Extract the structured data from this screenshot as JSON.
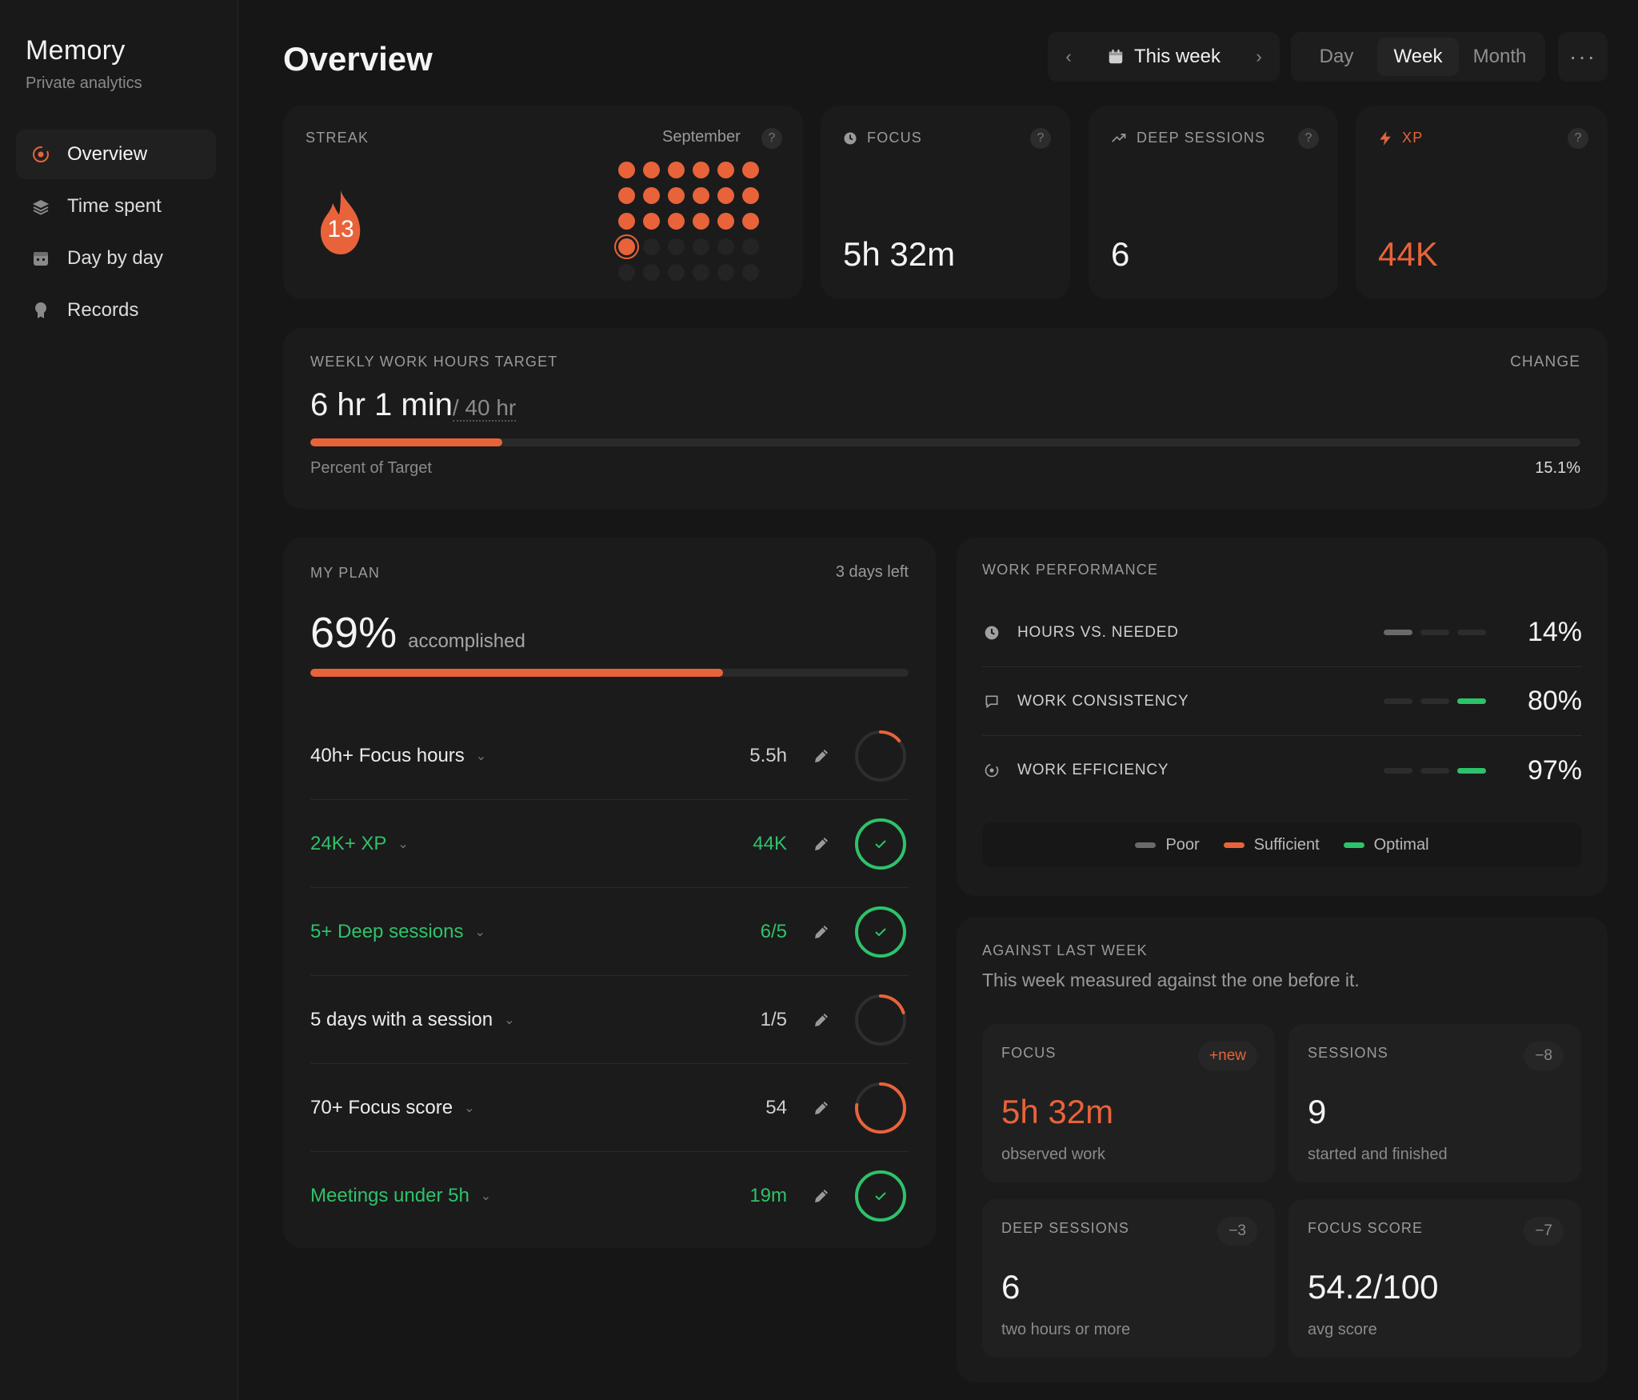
{
  "app": {
    "title": "Memory",
    "subtitle": "Private analytics"
  },
  "sidebar": {
    "items": [
      {
        "label": "Overview",
        "icon": "target-icon",
        "active": true
      },
      {
        "label": "Time spent",
        "icon": "layers-icon"
      },
      {
        "label": "Day by day",
        "icon": "calendar-icon"
      },
      {
        "label": "Records",
        "icon": "medal-icon"
      }
    ]
  },
  "header": {
    "title": "Overview",
    "period_label": "This week",
    "prev_icon": "chevron-left-icon",
    "next_icon": "chevron-right-icon",
    "range_options": [
      "Day",
      "Week",
      "Month"
    ],
    "range_selected": "Week",
    "more_icon": "more-horizontal-icon"
  },
  "streak": {
    "label": "STREAK",
    "month": "September",
    "days": 13,
    "calendar_total_days": 30,
    "calendar_active_days": 19,
    "calendar_today_index": 18
  },
  "stats": [
    {
      "label": "FOCUS",
      "icon": "clock-icon",
      "value": "5h 32m",
      "accent": false
    },
    {
      "label": "DEEP SESSIONS",
      "icon": "trend-up-icon",
      "value": "6",
      "accent": false
    },
    {
      "label": "XP",
      "icon": "bolt-icon",
      "value": "44K",
      "accent": true
    }
  ],
  "target": {
    "label": "WEEKLY WORK HOURS TARGET",
    "change_label": "CHANGE",
    "value": "6 hr 1 min",
    "of": "/ 40 hr",
    "footer": "Percent of Target",
    "percent_text": "15.1%",
    "progress": 0.151
  },
  "plan": {
    "label": "MY PLAN",
    "days_left": "3 days left",
    "percent": "69%",
    "percent_note": "accomplished",
    "progress": 0.69,
    "goals": [
      {
        "name": "40h+ Focus hours",
        "value": "5.5h",
        "progress": 0.14,
        "done": false
      },
      {
        "name": "24K+ XP",
        "value": "44K",
        "progress": 1,
        "done": true
      },
      {
        "name": "5+ Deep sessions",
        "value": "6/5",
        "progress": 1,
        "done": true
      },
      {
        "name": "5 days with a session",
        "value": "1/5",
        "progress": 0.2,
        "done": false
      },
      {
        "name": "70+ Focus score",
        "value": "54",
        "progress": 0.77,
        "done": false
      },
      {
        "name": "Meetings under 5h",
        "value": "19m",
        "progress": 1,
        "done": true
      }
    ]
  },
  "performance": {
    "label": "WORK PERFORMANCE",
    "rows": [
      {
        "name": "HOURS VS. NEEDED",
        "icon": "clock-icon",
        "value": "14%",
        "level": "poor"
      },
      {
        "name": "WORK CONSISTENCY",
        "icon": "chat-icon",
        "value": "80%",
        "level": "optimal"
      },
      {
        "name": "WORK EFFICIENCY",
        "icon": "gauge-icon",
        "value": "97%",
        "level": "optimal"
      }
    ],
    "legend": [
      {
        "label": "Poor",
        "color": "#6a6a6a"
      },
      {
        "label": "Sufficient",
        "color": "#e8633a"
      },
      {
        "label": "Optimal",
        "color": "#2ec26a"
      }
    ]
  },
  "against_last_week": {
    "label": "AGAINST LAST WEEK",
    "description": "This week measured against the one before it.",
    "tiles": [
      {
        "label": "FOCUS",
        "badge": "+new",
        "value": "5h 32m",
        "sub": "observed work",
        "accent": true
      },
      {
        "label": "SESSIONS",
        "badge": "−8",
        "value": "9",
        "sub": "started and finished",
        "accent": false
      },
      {
        "label": "DEEP SESSIONS",
        "badge": "−3",
        "value": "6",
        "sub": "two hours or more",
        "accent": false
      },
      {
        "label": "FOCUS SCORE",
        "badge": "−7",
        "value": "54.2/100",
        "sub": "avg score",
        "accent": false
      }
    ]
  },
  "colors": {
    "accent": "#e8633a",
    "success": "#2ec26a",
    "background": "#161616",
    "card": "#1b1b1b"
  }
}
